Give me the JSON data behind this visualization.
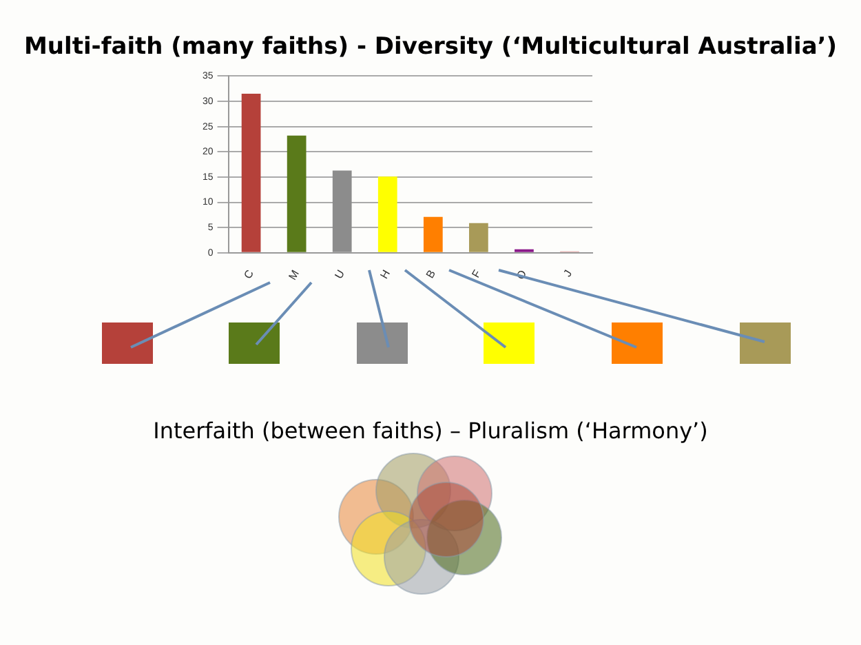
{
  "chart_data": {
    "type": "bar",
    "title": "Multi-faith (many faiths)  - Diversity (‘Multicultural Australia’)",
    "categories": [
      "C",
      "M",
      "U",
      "H",
      "B",
      "F",
      "O",
      "J"
    ],
    "values": [
      31.5,
      23.2,
      16.3,
      15.1,
      7.1,
      5.9,
      0.7,
      0.3
    ],
    "colors": [
      "#b5413a",
      "#5a7a1a",
      "#8c8c8c",
      "#ffff00",
      "#ff7f00",
      "#a89a58",
      "#8b1a8b",
      "#e0a0a0"
    ],
    "ylim": [
      0,
      35
    ],
    "yticks": [
      0,
      5,
      10,
      15,
      20,
      25,
      30,
      35
    ],
    "grid": "y",
    "legend": false,
    "annotations": [
      "Interfaith (between faiths) – Pluralism (‘Harmony’)"
    ]
  }
}
